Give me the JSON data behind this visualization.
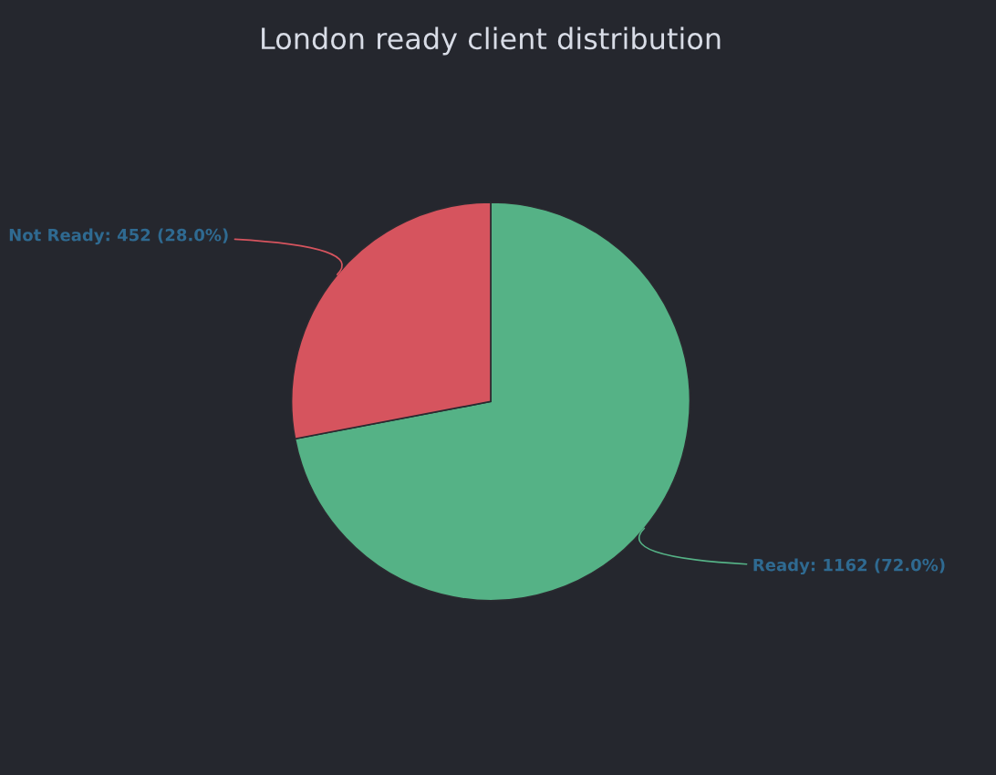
{
  "chart_data": {
    "type": "pie",
    "title": "London ready client distribution",
    "categories": [
      "Ready",
      "Not Ready"
    ],
    "values": [
      1162,
      452
    ],
    "value_labels": [
      "1162 (72.0%)",
      "452 (28.0%)"
    ],
    "colors": [
      "#55b286",
      "#d6545e"
    ],
    "legend": false
  }
}
